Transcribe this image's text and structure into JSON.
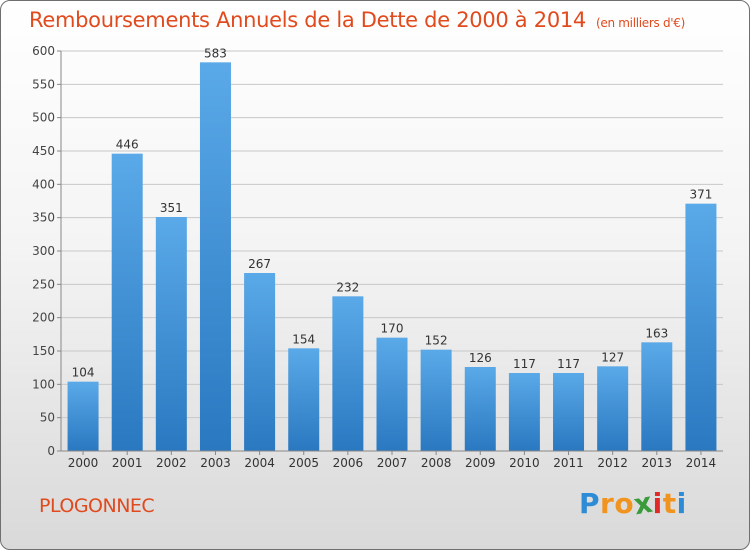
{
  "title": {
    "main": "Remboursements Annuels de la Dette de 2000 à 2014",
    "unit": "(en milliers d'€)"
  },
  "commune": "PLOGONNEC",
  "logo": {
    "letters": [
      "P",
      "r",
      "o",
      "x",
      "i",
      "t",
      "i"
    ],
    "colors": [
      "#2e8bd6",
      "#f0941f",
      "#f0941f",
      "#3a9b3a",
      "#e02a2a",
      "#f0941f",
      "#2e8bd6"
    ]
  },
  "colors": {
    "bar_light": "#5aa9e8",
    "bar_dark": "#2a78c0",
    "title": "#e04a1d",
    "grid": "#c8c8c8"
  },
  "chart_data": {
    "type": "bar",
    "title": "Remboursements Annuels de la Dette de 2000 à 2014",
    "xlabel": "",
    "ylabel": "",
    "categories": [
      "2000",
      "2001",
      "2002",
      "2003",
      "2004",
      "2005",
      "2006",
      "2007",
      "2008",
      "2009",
      "2010",
      "2011",
      "2012",
      "2013",
      "2014"
    ],
    "values": [
      104,
      446,
      351,
      583,
      267,
      154,
      232,
      170,
      152,
      126,
      117,
      117,
      127,
      163,
      371
    ],
    "ylim": [
      0,
      600
    ],
    "yticks": [
      0,
      50,
      100,
      150,
      200,
      250,
      300,
      350,
      400,
      450,
      500,
      550,
      600
    ],
    "grid": true
  }
}
